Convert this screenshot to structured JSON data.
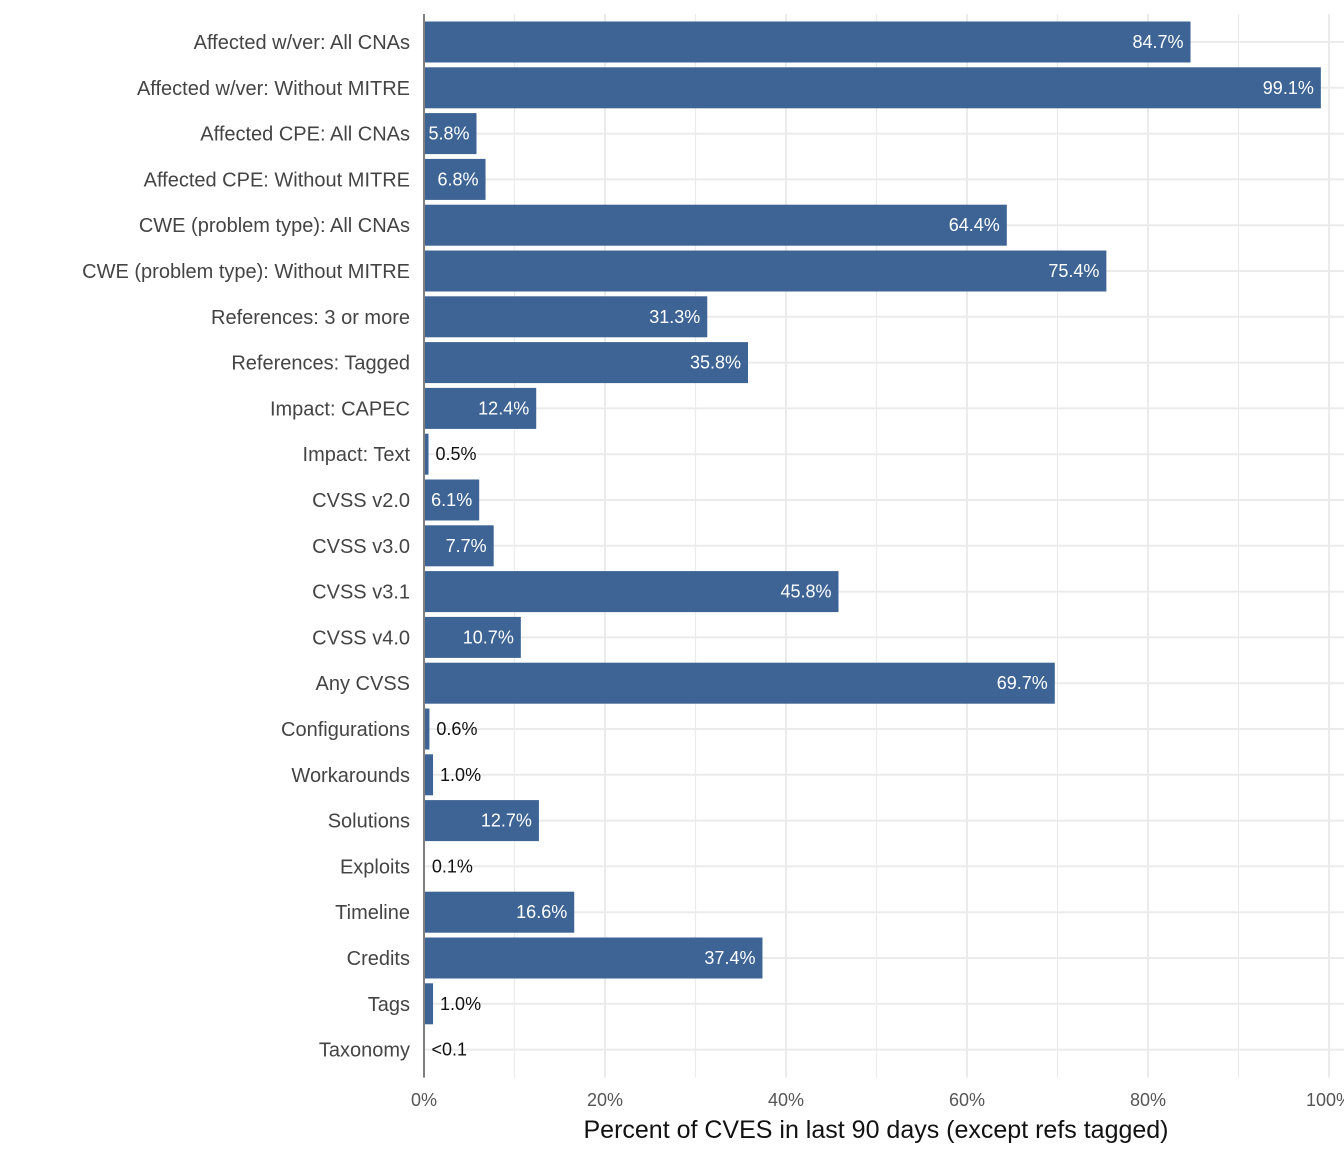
{
  "chart_data": {
    "type": "bar",
    "orientation": "horizontal",
    "title": "",
    "xlabel": "Percent of CVES in last 90 days (except refs tagged)",
    "ylabel": "",
    "xlim": [
      0,
      100
    ],
    "x_ticks": [
      "0%",
      "20%",
      "40%",
      "60%",
      "80%",
      "100%"
    ],
    "x_tick_values": [
      0,
      20,
      40,
      60,
      80,
      100
    ],
    "grid": true,
    "bar_color": "#3d6494",
    "categories": [
      "Affected w/ver: All CNAs",
      "Affected w/ver: Without MITRE",
      "Affected CPE: All CNAs",
      "Affected CPE: Without MITRE",
      "CWE (problem type): All CNAs",
      "CWE (problem type): Without MITRE",
      "References: 3 or more",
      "References: Tagged",
      "Impact: CAPEC",
      "Impact: Text",
      "CVSS v2.0",
      "CVSS v3.0",
      "CVSS v3.1",
      "CVSS v4.0",
      "Any CVSS",
      "Configurations",
      "Workarounds",
      "Solutions",
      "Exploits",
      "Timeline",
      "Credits",
      "Tags",
      "Taxonomy"
    ],
    "values": [
      84.7,
      99.1,
      5.8,
      6.8,
      64.4,
      75.4,
      31.3,
      35.8,
      12.4,
      0.5,
      6.1,
      7.7,
      45.8,
      10.7,
      69.7,
      0.6,
      1.0,
      12.7,
      0.1,
      16.6,
      37.4,
      1.0,
      0.05
    ],
    "value_labels": [
      "84.7%",
      "99.1%",
      "5.8%",
      "6.8%",
      "64.4%",
      "75.4%",
      "31.3%",
      "35.8%",
      "12.4%",
      "0.5%",
      "6.1%",
      "7.7%",
      "45.8%",
      "10.7%",
      "69.7%",
      "0.6%",
      "1.0%",
      "12.7%",
      "0.1%",
      "16.6%",
      "37.4%",
      "1.0%",
      "<0.1"
    ]
  }
}
